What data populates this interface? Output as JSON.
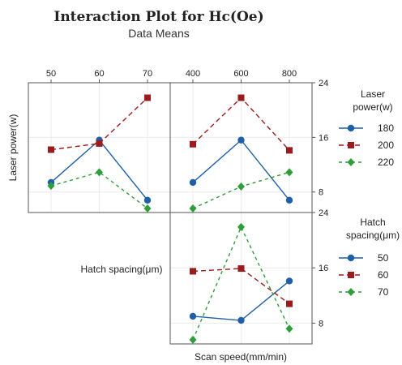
{
  "chart_data": {
    "type": "line",
    "title": "Interaction Plot for Hc(Oe)",
    "subtitle": "Data Means",
    "colors": {
      "s1": "#1f5fa8",
      "s2": "#9b1c1c",
      "s3": "#2e9e3a"
    },
    "factors": [
      {
        "name": "Laser power(w)",
        "levels": [
          "180",
          "200",
          "220"
        ]
      },
      {
        "name": "Hatch spacing(μm)",
        "levels": [
          "50",
          "60",
          "70"
        ]
      },
      {
        "name": "Scan speed(mm/min)",
        "levels": [
          "400",
          "600",
          "800"
        ]
      }
    ],
    "legends": [
      {
        "title_lines": [
          "Laser",
          "power(w)"
        ],
        "items": [
          "180",
          "200",
          "220"
        ]
      },
      {
        "title_lines": [
          "Hatch",
          "spacing(μm)"
        ],
        "items": [
          "50",
          "60",
          "70"
        ]
      }
    ],
    "ylim": [
      5,
      24
    ],
    "yticks": [
      8,
      16,
      24
    ],
    "panels": [
      {
        "id": "hatch-vs-laser",
        "xlevels": [
          "50",
          "60",
          "70"
        ],
        "series": [
          {
            "name": "180",
            "values": [
              9.4,
              15.6,
              6.8
            ]
          },
          {
            "name": "200",
            "values": [
              14.2,
              15.1,
              21.8
            ]
          },
          {
            "name": "220",
            "values": [
              8.9,
              10.9,
              5.6
            ]
          }
        ]
      },
      {
        "id": "scan-vs-laser",
        "xlevels": [
          "400",
          "600",
          "800"
        ],
        "series": [
          {
            "name": "180",
            "values": [
              9.4,
              15.6,
              6.8
            ]
          },
          {
            "name": "200",
            "values": [
              15.0,
              21.8,
              14.1
            ]
          },
          {
            "name": "220",
            "values": [
              5.6,
              8.8,
              10.9
            ]
          }
        ]
      },
      {
        "id": "scan-vs-hatch",
        "xlevels": [
          "400",
          "600",
          "800"
        ],
        "series": [
          {
            "name": "50",
            "values": [
              9.0,
              8.4,
              14.1
            ]
          },
          {
            "name": "60",
            "values": [
              15.5,
              15.9,
              10.8
            ]
          },
          {
            "name": "70",
            "values": [
              5.6,
              21.9,
              7.2
            ]
          }
        ]
      }
    ]
  }
}
